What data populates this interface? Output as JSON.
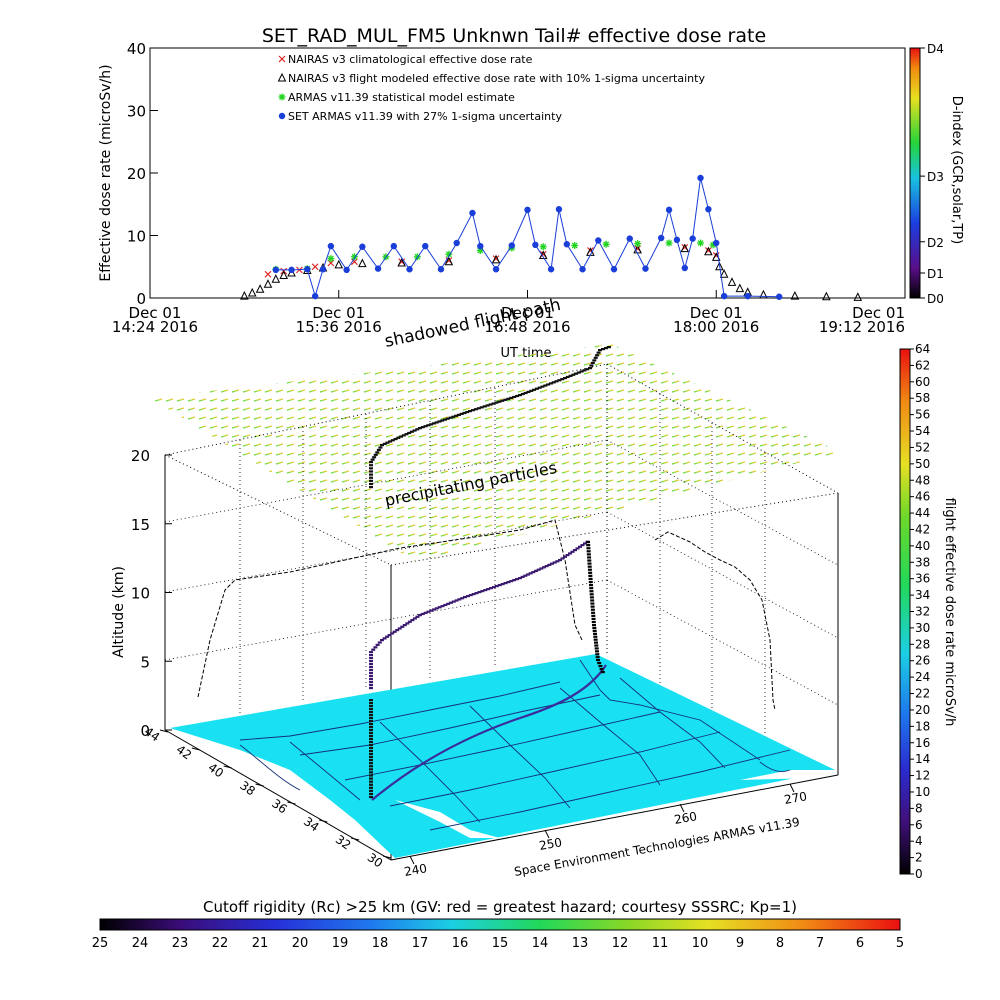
{
  "page_title": "SET_RAD_MUL_FM5 Unknwn Tail#  effective dose rate",
  "chart_data": [
    {
      "type": "scatter",
      "title": "SET_RAD_MUL_FM5 Unknwn Tail#  effective dose rate",
      "xlabel": "UT time",
      "ylabel": "Effective dose rate (microSv/h)",
      "ylim": [
        0,
        40
      ],
      "yticks": [
        0,
        10,
        20,
        30,
        40
      ],
      "xlim_hours": [
        14.4,
        19.2
      ],
      "xticks": [
        {
          "h": 14.4,
          "line1": "Dec 01",
          "line2": "14:24 2016"
        },
        {
          "h": 15.6,
          "line1": "Dec 01",
          "line2": "15:36 2016"
        },
        {
          "h": 16.8,
          "line1": "Dec 01",
          "line2": "16:48 2016"
        },
        {
          "h": 18.0,
          "line1": "Dec 01",
          "line2": "18:00 2016"
        },
        {
          "h": 19.2,
          "line1": "Dec 01",
          "line2": "19:12 2016"
        }
      ],
      "right_axis": {
        "label": "D-index (GCR,solar,TP)",
        "ticks": [
          {
            "label": "D0",
            "value": 0
          },
          {
            "label": "D1",
            "value": 4
          },
          {
            "label": "D2",
            "value": 9
          },
          {
            "label": "D3",
            "value": 19.5
          },
          {
            "label": "D4",
            "value": 40
          }
        ]
      },
      "legend_placement": "top-left",
      "series": [
        {
          "name": "NAIRAS v3 climatological effective dose rate",
          "color": "#e0201f",
          "marker": "x",
          "points": [
            [
              15.15,
              3.8
            ],
            [
              15.25,
              4.3
            ],
            [
              15.35,
              4.5
            ],
            [
              15.45,
              5.0
            ],
            [
              15.55,
              5.6
            ],
            [
              15.7,
              5.8
            ],
            [
              16.0,
              5.8
            ],
            [
              16.3,
              6.0
            ],
            [
              16.6,
              6.3
            ],
            [
              16.9,
              7.0
            ],
            [
              17.2,
              7.6
            ],
            [
              17.5,
              7.9
            ],
            [
              17.8,
              8.1
            ],
            [
              17.95,
              7.6
            ],
            [
              18.0,
              6.8
            ]
          ]
        },
        {
          "name": "NAIRAS v3 flight modeled effective dose rate with 10% 1-sigma uncertainty",
          "color": "#000000",
          "marker": "triangle",
          "points": [
            [
              15.0,
              0.3
            ],
            [
              15.05,
              0.8
            ],
            [
              15.1,
              1.4
            ],
            [
              15.15,
              2.2
            ],
            [
              15.2,
              3.0
            ],
            [
              15.25,
              3.6
            ],
            [
              15.3,
              4.0
            ],
            [
              15.4,
              4.4
            ],
            [
              15.5,
              4.8
            ],
            [
              15.6,
              5.3
            ],
            [
              15.75,
              5.5
            ],
            [
              16.0,
              5.6
            ],
            [
              16.3,
              5.8
            ],
            [
              16.6,
              6.1
            ],
            [
              16.9,
              6.8
            ],
            [
              17.2,
              7.3
            ],
            [
              17.5,
              7.7
            ],
            [
              17.8,
              7.9
            ],
            [
              17.95,
              7.4
            ],
            [
              18.0,
              6.5
            ],
            [
              18.02,
              5.0
            ],
            [
              18.05,
              3.8
            ],
            [
              18.1,
              2.5
            ],
            [
              18.15,
              1.5
            ],
            [
              18.2,
              0.9
            ],
            [
              18.3,
              0.5
            ],
            [
              18.5,
              0.3
            ],
            [
              18.7,
              0.2
            ],
            [
              18.9,
              0.1
            ]
          ]
        },
        {
          "name": "ARMAS v11.39 statistical model estimate",
          "color": "#22d422",
          "marker": "asterisk",
          "points": [
            [
              15.2,
              4.6
            ],
            [
              15.4,
              4.7
            ],
            [
              15.55,
              6.3
            ],
            [
              15.7,
              6.6
            ],
            [
              15.9,
              6.6
            ],
            [
              16.1,
              6.6
            ],
            [
              16.3,
              7.0
            ],
            [
              16.5,
              7.6
            ],
            [
              16.7,
              8.0
            ],
            [
              16.9,
              8.2
            ],
            [
              17.1,
              8.4
            ],
            [
              17.3,
              8.6
            ],
            [
              17.5,
              8.7
            ],
            [
              17.7,
              8.8
            ],
            [
              17.9,
              8.8
            ],
            [
              17.98,
              8.5
            ]
          ]
        },
        {
          "name": "SET ARMAS v11.39 with 27% 1-sigma uncertainty",
          "color": "#1a3ed8",
          "marker": "circle",
          "points": [
            [
              15.2,
              4.5
            ],
            [
              15.3,
              4.5
            ],
            [
              15.4,
              4.6
            ],
            [
              15.45,
              0.3
            ],
            [
              15.5,
              4.6
            ],
            [
              15.55,
              8.3
            ],
            [
              15.65,
              4.5
            ],
            [
              15.75,
              8.2
            ],
            [
              15.85,
              4.7
            ],
            [
              15.95,
              8.3
            ],
            [
              16.05,
              4.6
            ],
            [
              16.15,
              8.3
            ],
            [
              16.25,
              4.6
            ],
            [
              16.35,
              8.8
            ],
            [
              16.45,
              13.6
            ],
            [
              16.5,
              8.3
            ],
            [
              16.6,
              4.6
            ],
            [
              16.7,
              8.4
            ],
            [
              16.8,
              14.1
            ],
            [
              16.85,
              8.5
            ],
            [
              16.95,
              4.6
            ],
            [
              17.0,
              14.2
            ],
            [
              17.05,
              8.6
            ],
            [
              17.15,
              4.6
            ],
            [
              17.25,
              9.2
            ],
            [
              17.35,
              4.6
            ],
            [
              17.45,
              9.5
            ],
            [
              17.55,
              4.7
            ],
            [
              17.65,
              9.6
            ],
            [
              17.7,
              14.1
            ],
            [
              17.75,
              9.3
            ],
            [
              17.8,
              4.8
            ],
            [
              17.85,
              9.5
            ],
            [
              17.9,
              19.2
            ],
            [
              17.95,
              14.2
            ],
            [
              18.0,
              8.8
            ],
            [
              18.05,
              0.3
            ],
            [
              18.2,
              0.3
            ],
            [
              18.4,
              0.2
            ]
          ]
        }
      ]
    },
    {
      "type": "3d-scatter",
      "subtitle": "UT time",
      "zlabel": "Altitude (km)",
      "zticks": [
        0,
        5,
        10,
        15,
        20
      ],
      "lat_ticks": [
        44,
        42,
        40,
        38,
        36,
        34,
        32,
        30
      ],
      "lon_ticks": [
        240,
        250,
        260,
        270
      ],
      "annotations": [
        "shadowed flight path",
        "precipitating particles",
        "Space Environment Technologies ARMAS v11.39"
      ],
      "colorbar": {
        "label": "flight effective dose rate microSv/h",
        "range": [
          0,
          64
        ],
        "ticks": [
          0,
          2,
          4,
          6,
          8,
          10,
          12,
          14,
          16,
          18,
          20,
          22,
          24,
          26,
          28,
          30,
          32,
          34,
          36,
          38,
          40,
          42,
          44,
          46,
          48,
          50,
          52,
          54,
          56,
          58,
          60,
          62,
          64
        ]
      },
      "cutoff_rigidity_bar": {
        "label": "Cutoff rigidity (Rc) >25 km (GV: red = greatest hazard; courtesy SSSRC; Kp=1)",
        "ticks": [
          25,
          24,
          23,
          22,
          21,
          20,
          19,
          18,
          17,
          16,
          15,
          14,
          13,
          12,
          11,
          10,
          9,
          8,
          7,
          6,
          5
        ]
      }
    }
  ]
}
